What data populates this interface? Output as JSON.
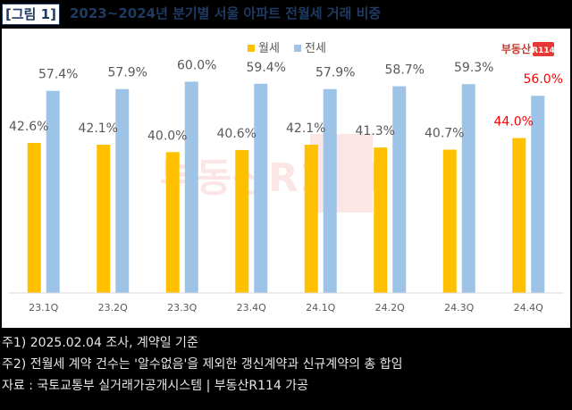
{
  "header": {
    "figure_label": "[그림 1]",
    "title": "2023~2024년 분기별 서울 아파트 전월세 거래 비중"
  },
  "logo": {
    "text": "부동산",
    "badge": "R114",
    "watermark": "부동산R114"
  },
  "colors": {
    "monthly": "#ffc000",
    "jeonse": "#9dc3e6",
    "highlight_label": "#ff0000",
    "label": "#595959"
  },
  "chart_data": {
    "type": "bar",
    "title": "2023~2024년 분기별 서울 아파트 전월세 거래 비중",
    "categories": [
      "23.1Q",
      "23.2Q",
      "23.3Q",
      "23.4Q",
      "24.1Q",
      "24.2Q",
      "24.3Q",
      "24.4Q"
    ],
    "series": [
      {
        "name": "월세",
        "values": [
          42.6,
          42.1,
          40.0,
          40.6,
          42.1,
          41.3,
          40.7,
          44.0
        ],
        "labels": [
          "42.6%",
          "42.1%",
          "40.0%",
          "40.6%",
          "42.1%",
          "41.3%",
          "40.7%",
          "44.0%"
        ]
      },
      {
        "name": "전세",
        "values": [
          57.4,
          57.9,
          60.0,
          59.4,
          57.9,
          58.7,
          59.3,
          56.0
        ],
        "labels": [
          "57.4%",
          "57.9%",
          "60.0%",
          "59.4%",
          "57.9%",
          "58.7%",
          "59.3%",
          "56.0%"
        ]
      }
    ],
    "highlight_index": 7,
    "ylim": [
      0,
      70
    ],
    "legend_position": "top-center",
    "grid": false
  },
  "notes": [
    "주1) 2025.02.04 조사, 계약일 기준",
    "주2) 전월세 계약 건수는 '알수없음'을 제외한 갱신계약과 신규계약의 총 합임",
    "자료 : 국토교통부 실거래가공개시스템 | 부동산R114 가공"
  ]
}
